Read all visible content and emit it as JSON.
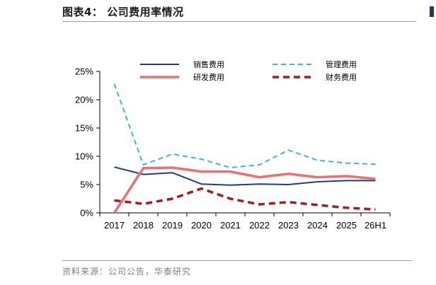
{
  "header": {
    "title": "图表4：  公司费用率情况"
  },
  "footer": {
    "source": "资料来源：公司公告，华泰研究"
  },
  "chart_data": {
    "type": "line",
    "title": "",
    "xlabel": "",
    "ylabel": "",
    "categories": [
      "2017",
      "2018",
      "2019",
      "2020",
      "2021",
      "2022",
      "2023",
      "2024",
      "2025",
      "26H1"
    ],
    "ylim": [
      0,
      0.25
    ],
    "y_ticks": [
      0,
      0.05,
      0.1,
      0.15,
      0.2,
      0.25
    ],
    "y_tick_labels": [
      "0%",
      "5%",
      "10%",
      "15%",
      "20%",
      "25%"
    ],
    "grid": false,
    "legend_position": "top",
    "series": [
      {
        "name": "销售费用",
        "color": "#1f3c88",
        "style": "solid",
        "values": [
          0.081,
          0.068,
          0.071,
          0.051,
          0.049,
          0.051,
          0.05,
          0.055,
          0.057,
          0.057
        ]
      },
      {
        "name": "管理费用",
        "color": "#3db3e8",
        "style": "dashed",
        "values": [
          0.228,
          0.085,
          0.104,
          0.095,
          0.08,
          0.085,
          0.111,
          0.093,
          0.088,
          0.086
        ]
      },
      {
        "name": "研发费用",
        "color": "#f26d6d",
        "style": "solid",
        "values": [
          0.0,
          0.079,
          0.08,
          0.073,
          0.073,
          0.063,
          0.069,
          0.063,
          0.065,
          0.06
        ]
      },
      {
        "name": "财务费用",
        "color": "#b2181b",
        "style": "dashed",
        "values": [
          0.022,
          0.016,
          0.025,
          0.043,
          0.025,
          0.015,
          0.019,
          0.014,
          0.009,
          0.006
        ]
      }
    ]
  }
}
